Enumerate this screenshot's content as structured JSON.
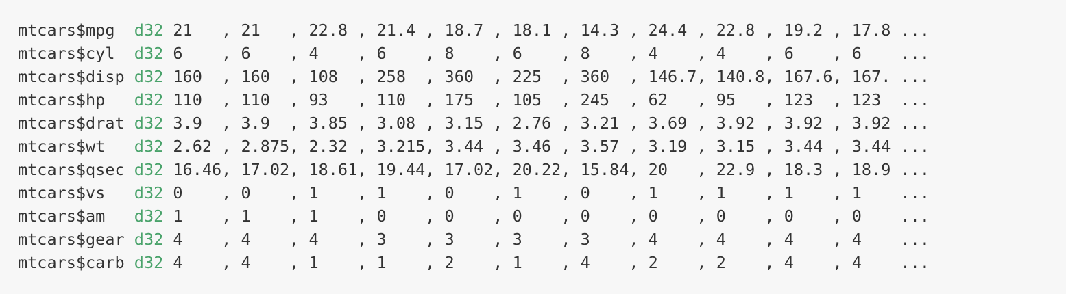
{
  "console": {
    "type_color": "#4aa36b",
    "text_color": "#333333",
    "background": "#f7f7f7",
    "rows": [
      {
        "name": "mtcars$mpg ",
        "type": "d32",
        "values": "21   , 21   , 22.8 , 21.4 , 18.7 , 18.1 , 14.3 , 24.4 , 22.8 , 19.2 , 17.8 ..."
      },
      {
        "name": "mtcars$cyl ",
        "type": "d32",
        "values": "6    , 6    , 4    , 6    , 8    , 6    , 8    , 4    , 4    , 6    , 6    ..."
      },
      {
        "name": "mtcars$disp",
        "type": "d32",
        "values": "160  , 160  , 108  , 258  , 360  , 225  , 360  , 146.7, 140.8, 167.6, 167. ..."
      },
      {
        "name": "mtcars$hp  ",
        "type": "d32",
        "values": "110  , 110  , 93   , 110  , 175  , 105  , 245  , 62   , 95   , 123  , 123  ..."
      },
      {
        "name": "mtcars$drat",
        "type": "d32",
        "values": "3.9  , 3.9  , 3.85 , 3.08 , 3.15 , 2.76 , 3.21 , 3.69 , 3.92 , 3.92 , 3.92 ..."
      },
      {
        "name": "mtcars$wt  ",
        "type": "d32",
        "values": "2.62 , 2.875, 2.32 , 3.215, 3.44 , 3.46 , 3.57 , 3.19 , 3.15 , 3.44 , 3.44 ..."
      },
      {
        "name": "mtcars$qsec",
        "type": "d32",
        "values": "16.46, 17.02, 18.61, 19.44, 17.02, 20.22, 15.84, 20   , 22.9 , 18.3 , 18.9 ..."
      },
      {
        "name": "mtcars$vs  ",
        "type": "d32",
        "values": "0    , 0    , 1    , 1    , 0    , 1    , 0    , 1    , 1    , 1    , 1    ..."
      },
      {
        "name": "mtcars$am  ",
        "type": "d32",
        "values": "1    , 1    , 1    , 0    , 0    , 0    , 0    , 0    , 0    , 0    , 0    ..."
      },
      {
        "name": "mtcars$gear",
        "type": "d32",
        "values": "4    , 4    , 4    , 3    , 3    , 3    , 3    , 4    , 4    , 4    , 4    ..."
      },
      {
        "name": "mtcars$carb",
        "type": "d32",
        "values": "4    , 4    , 1    , 1    , 2    , 1    , 4    , 2    , 2    , 4    , 4    ..."
      }
    ]
  }
}
